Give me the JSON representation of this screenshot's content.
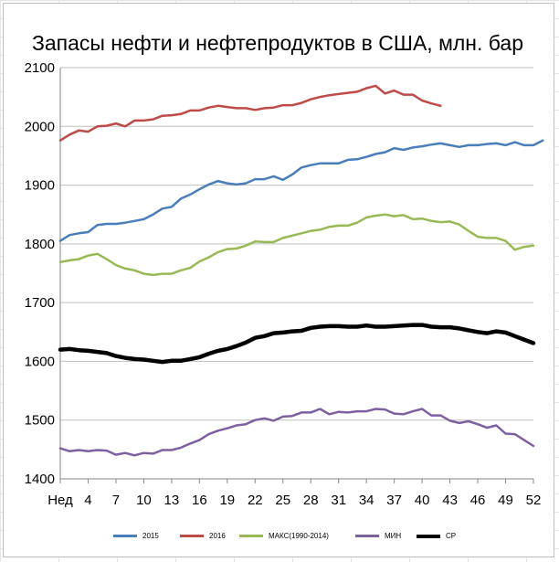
{
  "chart_data": {
    "type": "line",
    "title": "Запасы нефти и нефтепродуктов в США, млн. бар",
    "xlabel": "",
    "ylabel": "",
    "ylim": [
      1400,
      2100
    ],
    "yticks": [
      1400,
      1500,
      1600,
      1700,
      1800,
      1900,
      2000,
      2100
    ],
    "xlim": [
      1,
      52
    ],
    "xtick_labels": [
      {
        "x": 1,
        "label": "Нед"
      },
      {
        "x": 4,
        "label": "4"
      },
      {
        "x": 7,
        "label": "7"
      },
      {
        "x": 10,
        "label": "10"
      },
      {
        "x": 13,
        "label": "13"
      },
      {
        "x": 16,
        "label": "16"
      },
      {
        "x": 19,
        "label": "19"
      },
      {
        "x": 22,
        "label": "22"
      },
      {
        "x": 25,
        "label": "25"
      },
      {
        "x": 28,
        "label": "28"
      },
      {
        "x": 31,
        "label": "31"
      },
      {
        "x": 34,
        "label": "34"
      },
      {
        "x": 37,
        "label": "37"
      },
      {
        "x": 40,
        "label": "40"
      },
      {
        "x": 43,
        "label": "43"
      },
      {
        "x": 46,
        "label": "46"
      },
      {
        "x": 49,
        "label": "49"
      },
      {
        "x": 52,
        "label": "52"
      }
    ],
    "grid": "horizontal",
    "legend_position": "bottom",
    "series": [
      {
        "name": "2015",
        "color": "#4a7ebb",
        "x_start": 1,
        "values": [
          1805,
          1815,
          1818,
          1820,
          1832,
          1834,
          1834,
          1836,
          1839,
          1842,
          1850,
          1860,
          1863,
          1877,
          1884,
          1893,
          1901,
          1907,
          1903,
          1901,
          1903,
          1910,
          1910,
          1915,
          1909,
          1918,
          1930,
          1934,
          1937,
          1937,
          1937,
          1943,
          1944,
          1948,
          1953,
          1956,
          1963,
          1960,
          1964,
          1966,
          1969,
          1971,
          1968,
          1965,
          1968,
          1968,
          1970,
          1971,
          1968,
          1973,
          1968,
          1968,
          1976
        ]
      },
      {
        "name": "2016",
        "color": "#be4b48",
        "x_start": 1,
        "values": [
          1976,
          1986,
          1993,
          1991,
          2000,
          2001,
          2005,
          2000,
          2010,
          2010,
          2012,
          2018,
          2019,
          2021,
          2027,
          2027,
          2032,
          2035,
          2033,
          2031,
          2031,
          2028,
          2031,
          2032,
          2036,
          2036,
          2040,
          2046,
          2050,
          2053,
          2055,
          2057,
          2059,
          2065,
          2069,
          2056,
          2061,
          2054,
          2054,
          2044,
          2039,
          2035
        ]
      },
      {
        "name": "МАКС(1990-2014)",
        "color": "#98b954",
        "x_start": 1,
        "values": [
          1769,
          1772,
          1774,
          1780,
          1783,
          1774,
          1764,
          1758,
          1755,
          1749,
          1747,
          1749,
          1749,
          1755,
          1759,
          1770,
          1777,
          1786,
          1791,
          1792,
          1797,
          1804,
          1803,
          1803,
          1810,
          1814,
          1818,
          1822,
          1824,
          1829,
          1831,
          1831,
          1836,
          1845,
          1848,
          1850,
          1847,
          1849,
          1842,
          1843,
          1839,
          1837,
          1838,
          1833,
          1822,
          1812,
          1810,
          1810,
          1805,
          1790,
          1795,
          1797
        ]
      },
      {
        "name": "МИН",
        "color": "#7d60a0",
        "x_start": 1,
        "values": [
          1452,
          1447,
          1449,
          1447,
          1449,
          1448,
          1441,
          1444,
          1440,
          1444,
          1443,
          1449,
          1449,
          1453,
          1460,
          1466,
          1476,
          1482,
          1486,
          1491,
          1493,
          1500,
          1503,
          1499,
          1506,
          1507,
          1513,
          1513,
          1519,
          1510,
          1514,
          1513,
          1515,
          1515,
          1519,
          1518,
          1511,
          1510,
          1515,
          1519,
          1508,
          1508,
          1499,
          1495,
          1498,
          1493,
          1487,
          1491,
          1477,
          1476,
          1466,
          1456
        ]
      },
      {
        "name": "СР",
        "color": "#000000",
        "x_start": 1,
        "values": [
          1620,
          1621,
          1619,
          1618,
          1616,
          1614,
          1609,
          1606,
          1604,
          1603,
          1601,
          1599,
          1601,
          1601,
          1604,
          1607,
          1613,
          1618,
          1621,
          1626,
          1632,
          1640,
          1643,
          1648,
          1649,
          1651,
          1652,
          1657,
          1659,
          1660,
          1660,
          1659,
          1659,
          1661,
          1659,
          1659,
          1660,
          1661,
          1662,
          1662,
          1659,
          1658,
          1658,
          1656,
          1653,
          1650,
          1648,
          1651,
          1649,
          1643,
          1637,
          1631
        ]
      }
    ]
  }
}
